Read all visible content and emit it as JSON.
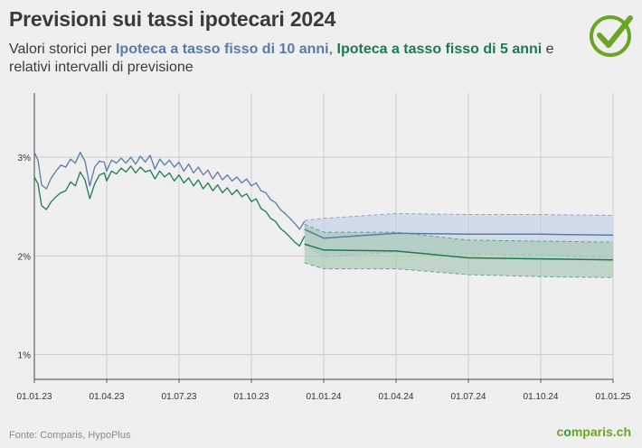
{
  "header": {
    "title": "Previsioni sui tassi ipotecari 2024",
    "subtitle_prefix": "Valori storici per ",
    "series_10y_label": "Ipoteca a tasso fisso di 10 anni",
    "subtitle_sep": ", ",
    "series_5y_label": "Ipoteca a tasso fisso di 5 anni",
    "subtitle_suffix": " e relativi intervalli di previsione"
  },
  "footer": {
    "source": "Fonte: Comparis, HypoPlus",
    "brand_c": "c",
    "brand_o": "o",
    "brand_rest": "mparis.ch"
  },
  "colors": {
    "background": "#efefef",
    "series_10y": "#5a7aa8",
    "series_5y": "#1d7a52",
    "band_10y": "#c5d3e8",
    "band_5y": "#a9cbb8",
    "grid": "#cccccc",
    "brand": "#6aa524"
  },
  "chart_data": {
    "type": "line",
    "title": "Previsioni sui tassi ipotecari 2024",
    "xlabel": "",
    "ylabel": "",
    "x_ticks": [
      "01.01.23",
      "01.04.23",
      "01.07.23",
      "01.10.23",
      "01.01.24",
      "01.04.24",
      "01.07.24",
      "01.10.24",
      "01.01.25"
    ],
    "x_range_months": [
      0,
      24
    ],
    "y_ticks": [
      {
        "value": 1,
        "label": "1%"
      },
      {
        "value": 2,
        "label": "2%"
      },
      {
        "value": 3,
        "label": "3%"
      }
    ],
    "ylim": [
      0.75,
      3.65
    ],
    "grid": true,
    "series": [
      {
        "name": "Ipoteca a tasso fisso di 10 anni",
        "role": "historical",
        "x": [
          0,
          0.15,
          0.3,
          0.5,
          0.7,
          0.9,
          1.1,
          1.3,
          1.5,
          1.7,
          1.9,
          2.1,
          2.3,
          2.5,
          2.7,
          2.9,
          3.0,
          3.2,
          3.4,
          3.6,
          3.8,
          4.0,
          4.2,
          4.4,
          4.6,
          4.8,
          5.0,
          5.2,
          5.4,
          5.6,
          5.8,
          6.0,
          6.2,
          6.4,
          6.6,
          6.8,
          7.0,
          7.2,
          7.4,
          7.6,
          7.8,
          8.0,
          8.2,
          8.4,
          8.6,
          8.8,
          9.0,
          9.2,
          9.4,
          9.6,
          9.8,
          10.0,
          10.2,
          10.4,
          10.6,
          10.8,
          11.0,
          11.2
        ],
        "values": [
          3.05,
          2.97,
          2.72,
          2.68,
          2.79,
          2.86,
          2.92,
          2.9,
          2.98,
          2.94,
          3.05,
          2.96,
          2.71,
          2.9,
          2.96,
          2.95,
          2.86,
          2.97,
          2.94,
          2.99,
          2.94,
          3.0,
          2.93,
          3.01,
          2.95,
          3.02,
          2.88,
          2.98,
          2.92,
          2.97,
          2.9,
          2.95,
          2.86,
          2.93,
          2.84,
          2.9,
          2.82,
          2.87,
          2.78,
          2.85,
          2.77,
          2.82,
          2.76,
          2.8,
          2.74,
          2.78,
          2.71,
          2.74,
          2.66,
          2.64,
          2.57,
          2.54,
          2.47,
          2.43,
          2.38,
          2.33,
          2.27,
          2.35
        ]
      },
      {
        "name": "Ipoteca a tasso fisso di 5 anni",
        "role": "historical",
        "x": [
          0,
          0.15,
          0.3,
          0.5,
          0.7,
          0.9,
          1.1,
          1.3,
          1.5,
          1.7,
          1.9,
          2.1,
          2.3,
          2.5,
          2.7,
          2.9,
          3.0,
          3.2,
          3.4,
          3.6,
          3.8,
          4.0,
          4.2,
          4.4,
          4.6,
          4.8,
          5.0,
          5.2,
          5.4,
          5.6,
          5.8,
          6.0,
          6.2,
          6.4,
          6.6,
          6.8,
          7.0,
          7.2,
          7.4,
          7.6,
          7.8,
          8.0,
          8.2,
          8.4,
          8.6,
          8.8,
          9.0,
          9.2,
          9.4,
          9.6,
          9.8,
          10.0,
          10.2,
          10.4,
          10.6,
          10.8,
          11.0,
          11.2
        ],
        "values": [
          2.8,
          2.73,
          2.51,
          2.47,
          2.55,
          2.6,
          2.64,
          2.66,
          2.75,
          2.71,
          2.85,
          2.77,
          2.58,
          2.73,
          2.82,
          2.84,
          2.76,
          2.86,
          2.83,
          2.89,
          2.85,
          2.91,
          2.84,
          2.9,
          2.85,
          2.87,
          2.78,
          2.86,
          2.8,
          2.84,
          2.76,
          2.82,
          2.74,
          2.79,
          2.71,
          2.77,
          2.68,
          2.74,
          2.66,
          2.72,
          2.64,
          2.69,
          2.62,
          2.67,
          2.6,
          2.63,
          2.55,
          2.58,
          2.48,
          2.45,
          2.38,
          2.35,
          2.28,
          2.24,
          2.19,
          2.14,
          2.1,
          2.2
        ]
      },
      {
        "name": "Ipoteca a tasso fisso di 10 anni",
        "role": "forecast",
        "x": [
          11.2,
          12,
          15,
          18,
          21,
          24
        ],
        "values": [
          2.27,
          2.18,
          2.23,
          2.22,
          2.22,
          2.21
        ],
        "lower": [
          2.12,
          1.99,
          2.04,
          2.02,
          2.01,
          1.98
        ],
        "upper": [
          2.36,
          2.38,
          2.43,
          2.42,
          2.42,
          2.41
        ]
      },
      {
        "name": "Ipoteca a tasso fisso di 5 anni",
        "role": "forecast",
        "x": [
          11.2,
          12,
          15,
          18,
          21,
          24
        ],
        "values": [
          2.12,
          2.06,
          2.05,
          1.98,
          1.97,
          1.96
        ],
        "lower": [
          1.93,
          1.87,
          1.87,
          1.81,
          1.79,
          1.78
        ],
        "upper": [
          2.32,
          2.24,
          2.24,
          2.16,
          2.15,
          2.14
        ]
      }
    ]
  }
}
